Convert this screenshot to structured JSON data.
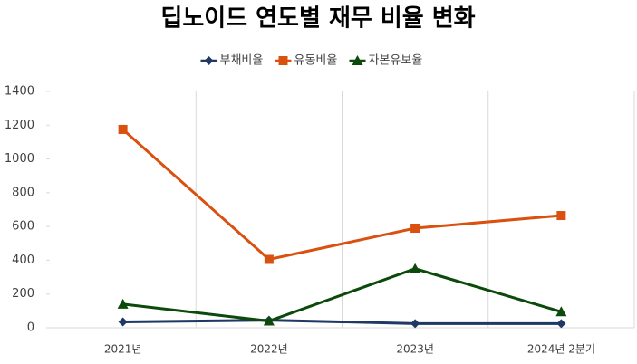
{
  "chart_data": {
    "type": "line",
    "title": "딥노이드 연도별 재무 비율 변화",
    "categories": [
      "2021년",
      "2022년",
      "2023년",
      "2024년 2분기"
    ],
    "series": [
      {
        "name": "부채비율",
        "color": "#1f3864",
        "marker": "diamond",
        "values": [
          35,
          45,
          25,
          25
        ]
      },
      {
        "name": "유동비율",
        "color": "#d9500f",
        "marker": "square",
        "values": [
          1175,
          405,
          590,
          665
        ]
      },
      {
        "name": "자본유보율",
        "color": "#0b4a0b",
        "marker": "triangle",
        "values": [
          140,
          40,
          350,
          95
        ]
      }
    ],
    "ylim": [
      0,
      1400
    ],
    "yticks": [
      0,
      200,
      400,
      600,
      800,
      1000,
      1200,
      1400
    ],
    "grid": true,
    "legend": "top"
  }
}
